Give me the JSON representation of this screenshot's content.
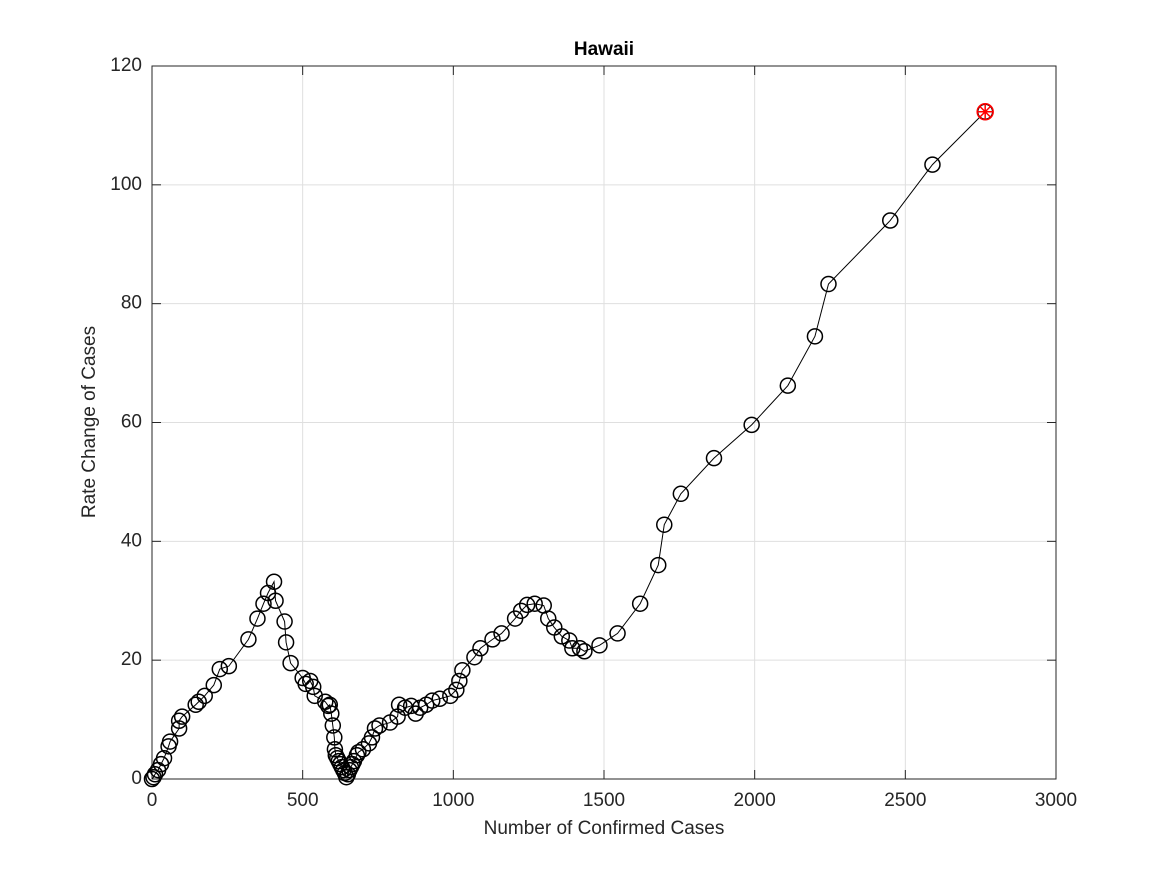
{
  "chart_data": {
    "type": "scatter",
    "title": "Hawaii",
    "x_label": "Number of Confirmed Cases",
    "y_label": "Rate Change of Cases",
    "xlim": [
      0,
      3000
    ],
    "ylim": [
      0,
      120
    ],
    "xticks": [
      0,
      500,
      1000,
      1500,
      2000,
      2500,
      3000
    ],
    "yticks": [
      0,
      20,
      40,
      60,
      80,
      100,
      120
    ],
    "grid": true,
    "series": [
      {
        "color": "#000000",
        "marker": "circle",
        "line": true,
        "x": [
          0,
          5,
          10,
          20,
          30,
          40,
          55,
          60,
          90,
          90,
          100,
          145,
          155,
          175,
          205,
          225,
          255,
          320,
          350,
          370,
          385,
          405,
          410,
          440,
          445,
          460,
          500,
          510,
          525,
          535,
          540,
          575,
          585,
          590,
          595,
          600,
          605,
          607,
          610,
          615,
          620,
          625,
          630,
          635,
          640,
          645,
          650,
          655,
          660,
          665,
          670,
          680,
          685,
          700,
          720,
          730,
          740,
          755,
          790,
          815,
          820,
          840,
          860,
          875,
          890,
          910,
          930,
          955,
          990,
          1010,
          1020,
          1030,
          1070,
          1090,
          1130,
          1160,
          1205,
          1225,
          1245,
          1270,
          1300,
          1315,
          1335,
          1360,
          1385,
          1395,
          1420,
          1435,
          1485,
          1545,
          1620,
          1680,
          1700,
          1755,
          1865,
          1990,
          2110,
          2200,
          2245,
          2450,
          2590,
          2765
        ],
        "values": [
          0,
          0.3,
          0.8,
          1.5,
          2.5,
          3.5,
          5.5,
          6.3,
          8.5,
          9.8,
          10.5,
          12.5,
          13,
          14,
          15.8,
          18.5,
          19,
          23.5,
          27,
          29.5,
          31.3,
          33.2,
          30,
          26.5,
          23,
          19.5,
          17,
          16,
          16.5,
          15.5,
          14,
          13,
          12.3,
          12.5,
          11,
          9,
          7,
          5,
          4,
          3.5,
          3,
          2.5,
          2,
          1.5,
          1,
          0.3,
          0.8,
          1.5,
          2,
          2.5,
          3,
          4,
          4.5,
          5,
          6,
          7,
          8.5,
          9,
          9.5,
          10.5,
          12.5,
          12,
          12.3,
          11,
          12,
          12.5,
          13.2,
          13.5,
          14,
          15,
          16.5,
          18.3,
          20.5,
          22,
          23.5,
          24.5,
          27,
          28.3,
          29.3,
          29.5,
          29.2,
          27,
          25.5,
          24,
          23.3,
          22,
          22,
          21.5,
          22.5,
          24.5,
          29.5,
          36,
          42.8,
          48,
          54,
          59.6,
          66.2,
          74.5,
          83.3,
          94,
          103.4,
          112.3
        ]
      },
      {
        "color": "#ff0000",
        "marker": "star",
        "line": false,
        "x": [
          2765
        ],
        "values": [
          112.3
        ]
      }
    ]
  }
}
